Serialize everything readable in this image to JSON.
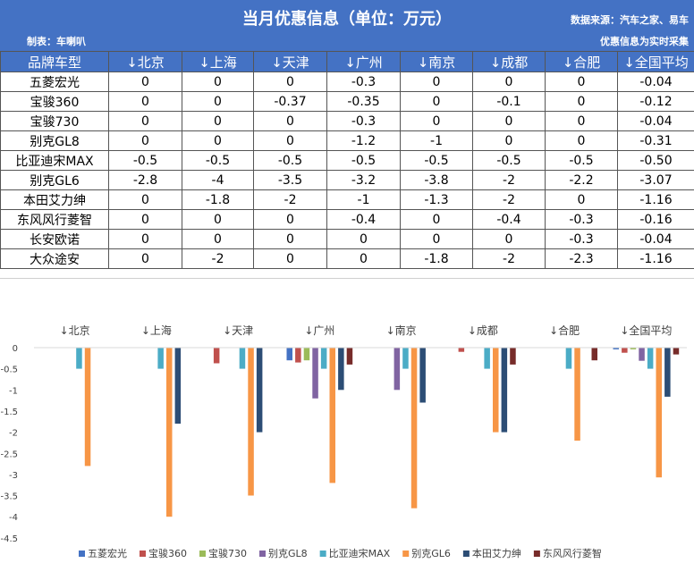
{
  "header": {
    "title": "当月优惠信息（单位：万元）",
    "maker": "制表：车喇叭",
    "source": "数据来源：汽车之家、易车",
    "note": "优惠信息为实时采集"
  },
  "table": {
    "corner": "品牌车型",
    "columns": [
      "↓北京",
      "↓上海",
      "↓天津",
      "↓广州",
      "↓南京",
      "↓成都",
      "↓合肥",
      "↓全国平均"
    ],
    "rows": [
      {
        "name": "五菱宏光",
        "values": [
          "0",
          "0",
          "0",
          "-0.3",
          "0",
          "0",
          "0",
          "-0.04"
        ]
      },
      {
        "name": "宝骏360",
        "values": [
          "0",
          "0",
          "-0.37",
          "-0.35",
          "0",
          "-0.1",
          "0",
          "-0.12"
        ]
      },
      {
        "name": "宝骏730",
        "values": [
          "0",
          "0",
          "0",
          "-0.3",
          "0",
          "0",
          "0",
          "-0.04"
        ]
      },
      {
        "name": "别克GL8",
        "values": [
          "0",
          "0",
          "0",
          "-1.2",
          "-1",
          "0",
          "0",
          "-0.31"
        ]
      },
      {
        "name": "比亚迪宋MAX",
        "values": [
          "-0.5",
          "-0.5",
          "-0.5",
          "-0.5",
          "-0.5",
          "-0.5",
          "-0.5",
          "-0.50"
        ]
      },
      {
        "name": "别克GL6",
        "values": [
          "-2.8",
          "-4",
          "-3.5",
          "-3.2",
          "-3.8",
          "-2",
          "-2.2",
          "-3.07"
        ]
      },
      {
        "name": "本田艾力绅",
        "values": [
          "0",
          "-1.8",
          "-2",
          "-1",
          "-1.3",
          "-2",
          "0",
          "-1.16"
        ]
      },
      {
        "name": "东风风行菱智",
        "values": [
          "0",
          "0",
          "0",
          "-0.4",
          "0",
          "-0.4",
          "-0.3",
          "-0.16"
        ]
      },
      {
        "name": "长安欧诺",
        "values": [
          "0",
          "0",
          "0",
          "0",
          "0",
          "0",
          "-0.3",
          "-0.04"
        ]
      },
      {
        "name": "大众途安",
        "values": [
          "0",
          "-2",
          "0",
          "0",
          "-1.8",
          "-2",
          "-2.3",
          "-1.16"
        ]
      }
    ]
  },
  "chart_data": {
    "type": "bar",
    "categories": [
      "↓北京",
      "↓上海",
      "↓天津",
      "↓广州",
      "↓南京",
      "↓成都",
      "↓合肥",
      "↓全国平均"
    ],
    "ylim": [
      -4.5,
      0
    ],
    "yticks": [
      0,
      -0.5,
      -1,
      -1.5,
      -2,
      -2.5,
      -3,
      -3.5,
      -4,
      -4.5
    ],
    "grid": false,
    "legend_position": "bottom",
    "series": [
      {
        "name": "五菱宏光",
        "color": "#4472C4",
        "values": [
          0,
          0,
          0,
          -0.3,
          0,
          0,
          0,
          -0.04
        ]
      },
      {
        "name": "宝骏360",
        "color": "#C0504D",
        "values": [
          0,
          0,
          -0.37,
          -0.35,
          0,
          -0.1,
          0,
          -0.12
        ]
      },
      {
        "name": "宝骏730",
        "color": "#9BBB59",
        "values": [
          0,
          0,
          0,
          -0.3,
          0,
          0,
          0,
          -0.04
        ]
      },
      {
        "name": "别克GL8",
        "color": "#8064A2",
        "values": [
          0,
          0,
          0,
          -1.2,
          -1,
          0,
          0,
          -0.31
        ]
      },
      {
        "name": "比亚迪宋MAX",
        "color": "#4BACC6",
        "values": [
          -0.5,
          -0.5,
          -0.5,
          -0.5,
          -0.5,
          -0.5,
          -0.5,
          -0.5
        ]
      },
      {
        "name": "别克GL6",
        "color": "#F79646",
        "values": [
          -2.8,
          -4,
          -3.5,
          -3.2,
          -3.8,
          -2,
          -2.2,
          -3.07
        ]
      },
      {
        "name": "本田艾力绅",
        "color": "#2C4D75",
        "values": [
          0,
          -1.8,
          -2,
          -1,
          -1.3,
          -2,
          0,
          -1.16
        ]
      },
      {
        "name": "东风风行菱智",
        "color": "#772C2A",
        "values": [
          0,
          0,
          0,
          -0.4,
          0,
          -0.4,
          -0.3,
          -0.16
        ]
      }
    ]
  }
}
